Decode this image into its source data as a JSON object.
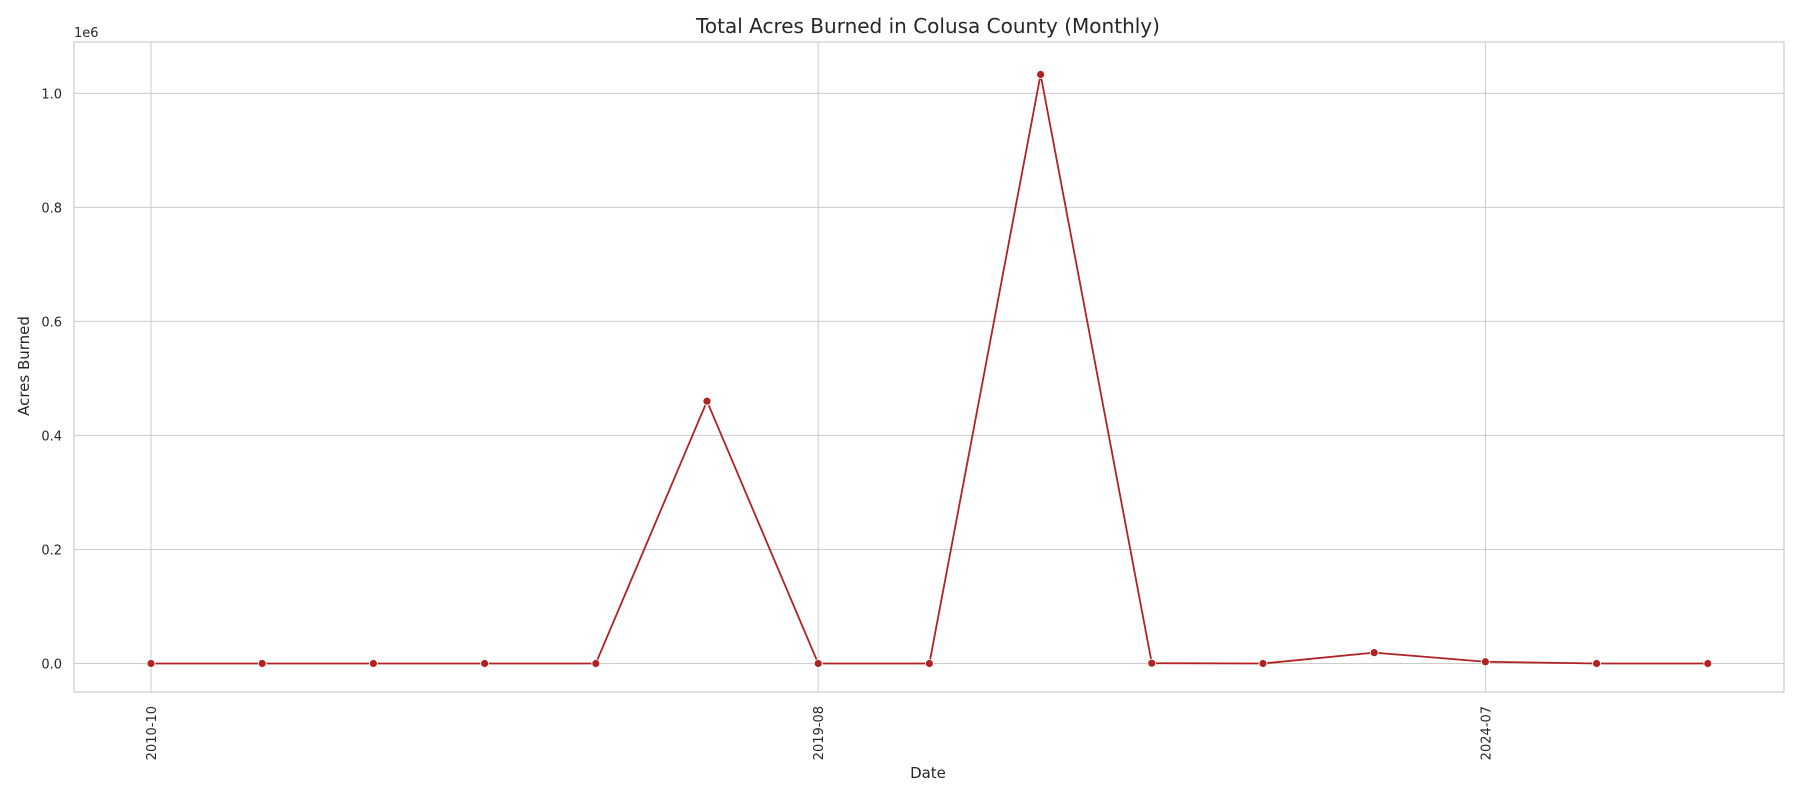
{
  "chart_data": {
    "type": "line",
    "title": "Total Acres Burned in Colusa County (Monthly)",
    "xlabel": "Date",
    "ylabel": "Acres Burned",
    "y_offset_label": "1e6",
    "x_tick_labels": [
      "2010-10",
      "2019-08",
      "2024-07"
    ],
    "y_tick_labels": [
      "0.0",
      "0.2",
      "0.4",
      "0.6",
      "0.8",
      "1.0"
    ],
    "y_ticks": [
      0,
      200000,
      400000,
      600000,
      800000,
      1000000
    ],
    "ylim": [
      -50000,
      1090000
    ],
    "grid": true,
    "color": "#b22222",
    "series": [
      {
        "values": [
          0,
          0,
          0,
          0,
          0,
          460000,
          0,
          0,
          1033000,
          500,
          0,
          19000,
          3000,
          0,
          0
        ]
      }
    ]
  }
}
